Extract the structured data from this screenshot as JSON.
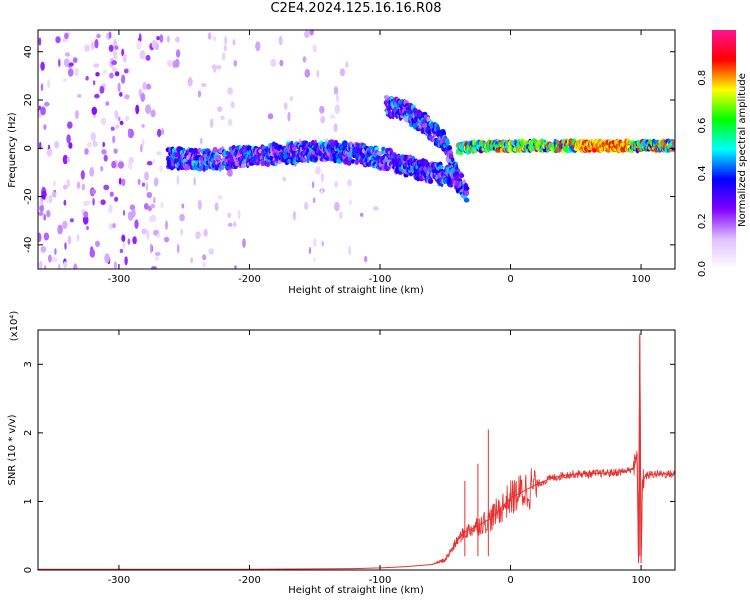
{
  "title": "C2E4.2024.125.16.16.R08",
  "colors": {
    "signal": "#e83030",
    "background": "#ffffff",
    "axis": "#000000"
  },
  "chart_data": [
    {
      "type": "heatmap",
      "title": "",
      "xlabel": "Height of straight line (km)",
      "ylabel": "Frequency (Hz)",
      "xlim": [
        -362,
        126
      ],
      "ylim": [
        -50,
        49
      ],
      "xticks": [
        -300,
        -200,
        -100,
        0,
        100
      ],
      "yticks": [
        -40,
        -20,
        0,
        20,
        40
      ],
      "colorbar": {
        "label": "Normalized spectral amplitude",
        "range": [
          0,
          1
        ],
        "ticks": [
          0.0,
          0.2,
          0.4,
          0.6,
          0.8
        ],
        "colormap": [
          "#ffffff",
          "#e0c0ff",
          "#8000ff",
          "#0000ff",
          "#00ffff",
          "#00ff00",
          "#ffff00",
          "#ff0000",
          "#ff1493"
        ]
      },
      "features": [
        {
          "name": "",
          "x": [
            -262,
            -230,
            -200,
            -170,
            -140,
            -110,
            -90
          ],
          "y": [
            -4,
            -5,
            -3,
            -2,
            -1,
            -3,
            -5
          ]
        },
        {
          "name": "",
          "x": [
            -95,
            -80,
            -65,
            -50,
            -40,
            -33
          ],
          "y": [
            18,
            15,
            10,
            2,
            -12,
            -20
          ]
        },
        {
          "name": "",
          "x": [
            -90,
            -75,
            -60,
            -50,
            -40
          ],
          "y": [
            -6,
            -8,
            -10,
            -11,
            -14
          ]
        },
        {
          "name": "",
          "x": [
            -40,
            -20,
            0,
            30,
            60,
            90,
            100,
            126
          ],
          "y": [
            0,
            1,
            1,
            1,
            1,
            1,
            1,
            1
          ]
        }
      ]
    },
    {
      "type": "line",
      "title": "",
      "xlabel": "Height of straight line (km)",
      "ylabel": "SNR (10 * v/v)",
      "exponent_label": "(x10⁴)",
      "xlim": [
        -362,
        126
      ],
      "ylim": [
        0,
        3.5
      ],
      "xticks": [
        -300,
        -200,
        -100,
        0,
        100
      ],
      "yticks": [
        0,
        1,
        2,
        3
      ],
      "series": [
        {
          "name": "",
          "x": [
            -362,
            -300,
            -200,
            -120,
            -100,
            -80,
            -60,
            -50,
            -45,
            -40,
            -35,
            -30,
            -25,
            -20,
            -15,
            -10,
            -5,
            0,
            10,
            20,
            30,
            40,
            50,
            60,
            70,
            80,
            90,
            95,
            97,
            98,
            99,
            100,
            101,
            102,
            105,
            110,
            126
          ],
          "y": [
            0.01,
            0.01,
            0.01,
            0.02,
            0.03,
            0.05,
            0.08,
            0.15,
            0.3,
            0.45,
            0.55,
            0.6,
            0.65,
            0.7,
            0.75,
            0.85,
            0.95,
            1.05,
            1.15,
            1.25,
            1.33,
            1.38,
            1.4,
            1.4,
            1.41,
            1.42,
            1.45,
            1.5,
            1.7,
            0.1,
            3.4,
            0.1,
            1.3,
            1.35,
            1.38,
            1.4,
            1.4
          ]
        }
      ],
      "spikes": [
        {
          "x": -17,
          "y": 2.05
        },
        {
          "x": -25,
          "y": 1.55
        },
        {
          "x": -35,
          "y": 1.3
        },
        {
          "x": 99,
          "y": 3.45
        }
      ]
    }
  ]
}
